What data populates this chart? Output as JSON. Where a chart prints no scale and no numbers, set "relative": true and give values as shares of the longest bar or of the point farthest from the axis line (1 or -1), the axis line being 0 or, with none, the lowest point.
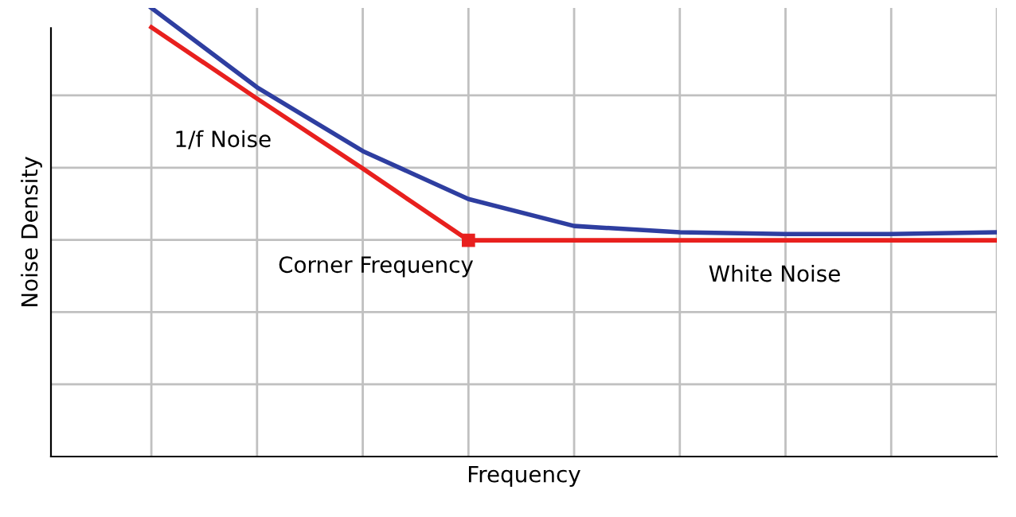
{
  "chart_data": {
    "type": "line",
    "relative": true,
    "xlabel": "Frequency",
    "ylabel": "Noise Density",
    "grid": true,
    "legend": false,
    "marker": "none",
    "line_style": "solid",
    "categories": [
      null,
      null,
      null,
      null,
      null,
      null,
      null,
      null,
      null
    ],
    "series": [
      {
        "color": "#2e3ea0",
        "values": [
          1.0,
          0.823,
          0.681,
          0.574,
          0.514,
          0.5,
          0.496,
          0.496,
          0.5
        ]
      },
      {
        "color": "#e8201e",
        "values": [
          0.957,
          0.798,
          0.642,
          0.482,
          0.482,
          0.482,
          0.482,
          0.482,
          0.482
        ]
      }
    ],
    "annotations": [
      "1/f Noise",
      "Corner Frequency",
      "White Noise"
    ]
  }
}
